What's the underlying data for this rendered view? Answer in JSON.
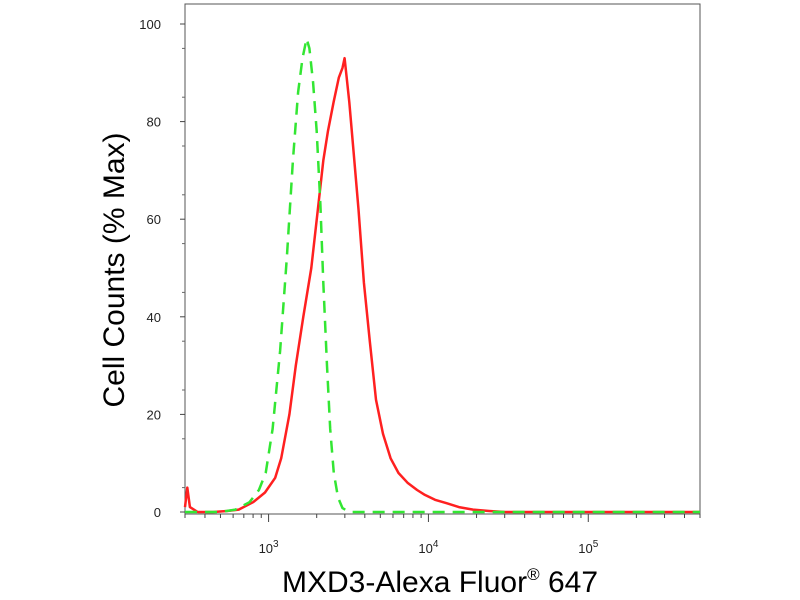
{
  "chart_data": {
    "type": "line",
    "xlabel": "MXD3-Alexa Fluor",
    "xlabel_superscript": "®",
    "xlabel_suffix": " 647",
    "ylabel": "Cell Counts (% Max)",
    "x_scale": "log",
    "xlim": [
      300,
      500000
    ],
    "ylim": [
      0,
      100
    ],
    "y_ticks": [
      0,
      20,
      40,
      60,
      80,
      100
    ],
    "x_major_ticks": [
      {
        "value": 1000,
        "base": "10",
        "exp": "3"
      },
      {
        "value": 10000,
        "base": "10",
        "exp": "4"
      },
      {
        "value": 100000,
        "base": "10",
        "exp": "5"
      }
    ],
    "grid": false,
    "legend": "none",
    "series": [
      {
        "color": "#ff2020",
        "style": "solid",
        "points": [
          [
            300,
            1
          ],
          [
            310,
            5
          ],
          [
            322,
            1
          ],
          [
            360,
            0
          ],
          [
            450,
            0
          ],
          [
            550,
            0.2
          ],
          [
            650,
            0.5
          ],
          [
            800,
            2
          ],
          [
            950,
            4
          ],
          [
            1100,
            7
          ],
          [
            1200,
            11
          ],
          [
            1350,
            20
          ],
          [
            1480,
            30
          ],
          [
            1650,
            40
          ],
          [
            1850,
            50
          ],
          [
            2050,
            63
          ],
          [
            2200,
            72
          ],
          [
            2350,
            78
          ],
          [
            2550,
            84
          ],
          [
            2750,
            89
          ],
          [
            2900,
            91
          ],
          [
            2990,
            93
          ],
          [
            3080,
            89
          ],
          [
            3200,
            84
          ],
          [
            3400,
            74
          ],
          [
            3650,
            62
          ],
          [
            3950,
            47
          ],
          [
            4300,
            35
          ],
          [
            4700,
            23
          ],
          [
            5200,
            16
          ],
          [
            5800,
            11
          ],
          [
            6500,
            8
          ],
          [
            7400,
            6
          ],
          [
            8500,
            4.5
          ],
          [
            9500,
            3.5
          ],
          [
            11000,
            2.5
          ],
          [
            13000,
            1.8
          ],
          [
            15500,
            1
          ],
          [
            19000,
            0.5
          ],
          [
            24000,
            0.2
          ],
          [
            30000,
            0
          ],
          [
            60000,
            0
          ],
          [
            150000,
            0
          ],
          [
            500000,
            0
          ]
        ]
      },
      {
        "color": "#33e633",
        "style": "dashed",
        "points": [
          [
            300,
            0
          ],
          [
            500,
            0
          ],
          [
            620,
            0.5
          ],
          [
            760,
            2
          ],
          [
            870,
            4.5
          ],
          [
            960,
            8
          ],
          [
            1060,
            17
          ],
          [
            1180,
            33
          ],
          [
            1300,
            52
          ],
          [
            1420,
            72
          ],
          [
            1530,
            86
          ],
          [
            1630,
            93
          ],
          [
            1730,
            97
          ],
          [
            1800,
            95
          ],
          [
            1900,
            88
          ],
          [
            2000,
            78
          ],
          [
            2110,
            63
          ],
          [
            2200,
            47
          ],
          [
            2320,
            30
          ],
          [
            2430,
            17
          ],
          [
            2560,
            8
          ],
          [
            2720,
            3
          ],
          [
            2900,
            0.8
          ],
          [
            3200,
            0
          ],
          [
            6000,
            0
          ],
          [
            500000,
            0
          ]
        ]
      }
    ]
  }
}
